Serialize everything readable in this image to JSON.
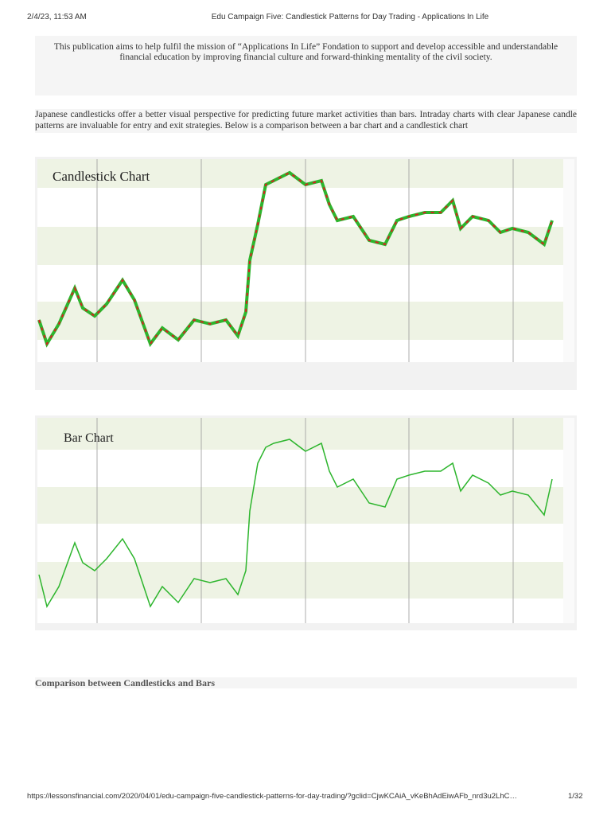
{
  "header": {
    "date": "2/4/23, 11:53 AM",
    "title": "Edu Campaign Five: Candlestick Patterns for Day Trading - Applications In Life"
  },
  "notice": "This publication aims to help fulfil the mission of “Applications In Life” Fondation to support and develop accessible and understandable financial education by improving financial culture and forward-thinking mentality of the civil society.",
  "intro": "Japanese candlesticks offer a better visual perspective for predicting future market activities than bars. Intraday charts with clear Japanese candle patterns are invaluable for entry and exit strategies. Below is a comparison between a bar chart and a candlestick chart",
  "figures": [
    {
      "title": "Candlestick Chart"
    },
    {
      "title": "Bar Chart"
    }
  ],
  "heading": "Comparison between Candlesticks and Bars",
  "footer": {
    "url": "https://lessonsfinancial.com/2020/04/01/edu-campaign-five-candlestick-patterns-for-day-trading/?gclid=CjwKCAiA_vKeBhAdEiwAFb_nrd3u2LhC…",
    "page": "1/32"
  }
}
